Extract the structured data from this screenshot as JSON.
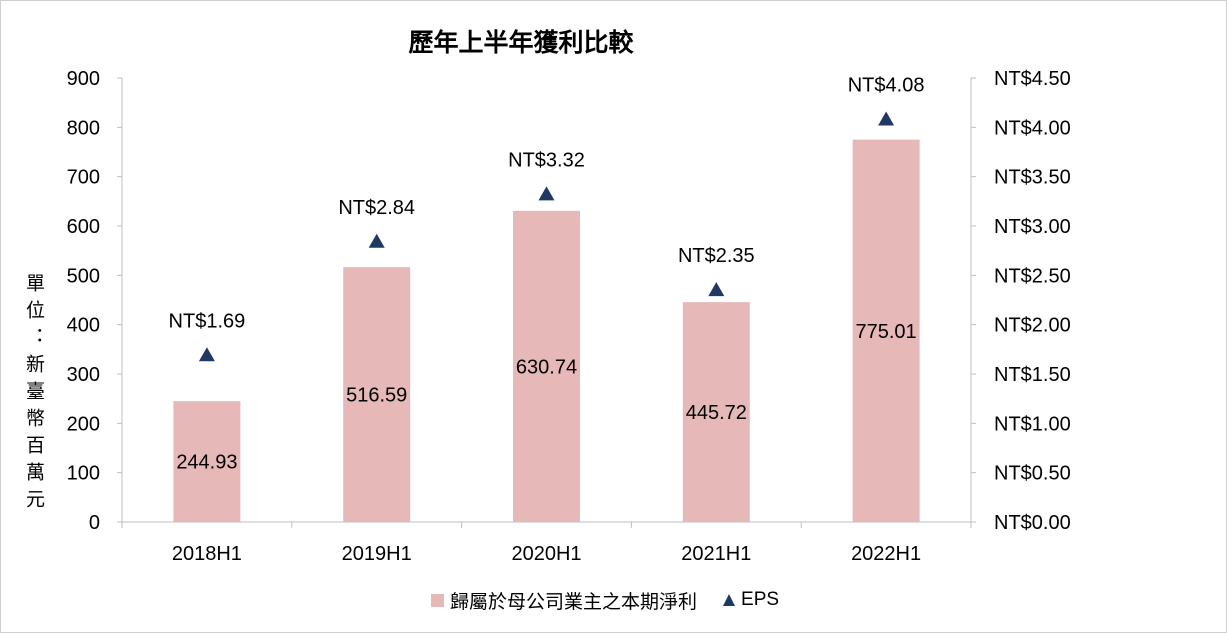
{
  "chart_data": {
    "type": "bar",
    "title": "歷年上半年獲利比較",
    "ylabel": "單位：新臺幣百萬元",
    "categories": [
      "2018H1",
      "2019H1",
      "2020H1",
      "2021H1",
      "2022H1"
    ],
    "series": [
      {
        "name": "歸屬於母公司業主之本期淨利",
        "type": "bar",
        "axis": "left",
        "color": "#e6b9b8",
        "values": [
          244.93,
          516.59,
          630.74,
          445.72,
          775.01
        ],
        "labels": [
          "244.93",
          "516.59",
          "630.74",
          "445.72",
          "775.01"
        ]
      },
      {
        "name": "EPS",
        "type": "scatter",
        "marker": "triangle",
        "axis": "right",
        "color": "#1f3864",
        "values": [
          1.69,
          2.84,
          3.32,
          2.35,
          4.08
        ],
        "labels": [
          "NT$1.69",
          "NT$2.84",
          "NT$3.32",
          "NT$2.35",
          "NT$4.08"
        ]
      }
    ],
    "ylim": [
      0,
      900
    ],
    "y2lim": [
      0,
      4.5
    ],
    "yticks": [
      "0",
      "100",
      "200",
      "300",
      "400",
      "500",
      "600",
      "700",
      "800",
      "900"
    ],
    "y2ticks": [
      "NT$0.00",
      "NT$0.50",
      "NT$1.00",
      "NT$1.50",
      "NT$2.00",
      "NT$2.50",
      "NT$3.00",
      "NT$3.50",
      "NT$4.00",
      "NT$4.50"
    ],
    "grid": false,
    "legend_position": "bottom"
  },
  "legend": {
    "bar_label": "歸屬於母公司業主之本期淨利",
    "eps_label": "EPS"
  }
}
